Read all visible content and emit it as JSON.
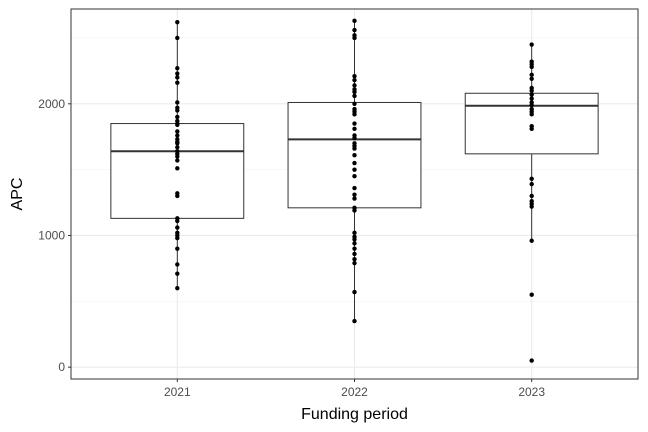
{
  "chart_data": {
    "type": "box",
    "xlabel": "Funding period",
    "ylabel": "APC",
    "categories": [
      "2021",
      "2022",
      "2023"
    ],
    "ylim": [
      -90,
      2720
    ],
    "y_ticks": [
      0,
      1000,
      2000
    ],
    "y_minor_ticks": [
      500,
      1500,
      2500
    ],
    "grid": true,
    "boxes": [
      {
        "category": "2021",
        "q1": 1130,
        "median": 1640,
        "q3": 1850,
        "whisker_low": 600,
        "whisker_high": 2620
      },
      {
        "category": "2022",
        "q1": 1210,
        "median": 1730,
        "q3": 2010,
        "whisker_low": 350,
        "whisker_high": 2630
      },
      {
        "category": "2023",
        "q1": 1620,
        "median": 1985,
        "q3": 2080,
        "whisker_low": 960,
        "whisker_high": 2450
      }
    ],
    "points": [
      {
        "category": "2021",
        "values": [
          2620,
          2500,
          2270,
          2230,
          2200,
          2160,
          2010,
          1970,
          1950,
          1900,
          1870,
          1850,
          1840,
          1790,
          1760,
          1730,
          1710,
          1700,
          1670,
          1640,
          1620,
          1600,
          1570,
          1510,
          1320,
          1300,
          1130,
          1110,
          1060,
          1020,
          1000,
          980,
          900,
          780,
          710,
          600
        ]
      },
      {
        "category": "2022",
        "values": [
          2630,
          2560,
          2520,
          2500,
          2210,
          2180,
          2140,
          2110,
          2090,
          2060,
          2000,
          1960,
          1940,
          1920,
          1850,
          1810,
          1760,
          1740,
          1700,
          1680,
          1660,
          1610,
          1550,
          1500,
          1450,
          1360,
          1310,
          1280,
          1210,
          1190,
          1020,
          990,
          970,
          940,
          900,
          860,
          820,
          790,
          570,
          350
        ]
      },
      {
        "category": "2023",
        "values": [
          2450,
          2320,
          2300,
          2280,
          2220,
          2190,
          2120,
          2100,
          2070,
          2040,
          2010,
          1990,
          1960,
          1940,
          1920,
          1830,
          1810,
          1430,
          1390,
          1300,
          1260,
          1240,
          1220,
          960,
          550,
          50
        ]
      }
    ],
    "colors": {
      "background": "#ffffff",
      "panel_border": "#333333",
      "grid_major": "#ebebeb",
      "grid_minor": "#f4f4f4",
      "box_line": "#333333",
      "median": "#333333",
      "point": "#000000",
      "tick_text": "#4d4d4d",
      "axis_title": "#000000"
    }
  }
}
